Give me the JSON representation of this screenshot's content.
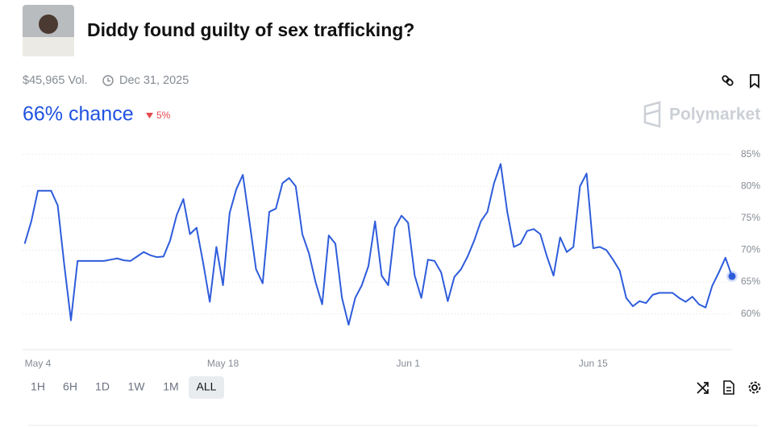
{
  "header": {
    "title": "Diddy found guilty of sex trafficking?",
    "volume": "$45,965 Vol.",
    "end_date": "Dec 31, 2025"
  },
  "odds": {
    "chance": "66% chance",
    "change": "5%"
  },
  "brand": "Polymarket",
  "time_ranges": [
    "1H",
    "6H",
    "1D",
    "1W",
    "1M",
    "ALL"
  ],
  "selected_range": "ALL",
  "chart_data": {
    "type": "line",
    "categories": [
      null,
      null,
      "May 4",
      null,
      null,
      null,
      null,
      null,
      null,
      null,
      null,
      null,
      null,
      null,
      null,
      null,
      null,
      null,
      null,
      null,
      null,
      null,
      null,
      null,
      null,
      null,
      null,
      null,
      null,
      null,
      "May 18",
      null,
      null,
      null,
      null,
      null,
      null,
      null,
      null,
      null,
      null,
      null,
      null,
      null,
      null,
      null,
      null,
      null,
      null,
      null,
      null,
      null,
      null,
      null,
      null,
      null,
      null,
      null,
      "Jun 1",
      null,
      null,
      null,
      null,
      null,
      null,
      null,
      null,
      null,
      null,
      null,
      null,
      null,
      null,
      null,
      null,
      null,
      null,
      null,
      null,
      null,
      null,
      null,
      null,
      null,
      null,
      null,
      "Jun 15",
      null,
      null,
      null,
      null,
      null,
      null,
      null,
      null,
      null,
      null,
      null,
      null,
      null,
      null,
      null,
      null,
      null,
      null,
      null,
      null,
      null
    ],
    "values": [
      71.0,
      74.5,
      79.3,
      79.3,
      79.3,
      77.0,
      67.6,
      59.0,
      68.3,
      68.3,
      68.3,
      68.3,
      68.3,
      68.5,
      68.7,
      68.4,
      68.3,
      69.0,
      69.7,
      69.2,
      68.9,
      69.0,
      71.5,
      75.5,
      78.0,
      72.5,
      73.5,
      68.0,
      61.9,
      70.5,
      64.5,
      75.8,
      79.5,
      81.8,
      74.5,
      67.0,
      64.8,
      76.0,
      76.5,
      80.5,
      81.3,
      80.0,
      72.5,
      69.5,
      65.0,
      61.5,
      72.3,
      71.0,
      62.5,
      58.3,
      62.5,
      64.5,
      67.5,
      74.5,
      66.0,
      64.5,
      73.5,
      75.4,
      74.3,
      66.0,
      62.5,
      68.5,
      68.3,
      66.5,
      62.0,
      65.8,
      67.0,
      69.0,
      71.5,
      74.5,
      76.0,
      80.5,
      83.5,
      76.0,
      70.5,
      71.0,
      73.0,
      73.3,
      72.5,
      69.0,
      66.0,
      72.0,
      69.7,
      70.5,
      80.0,
      82.0,
      70.3,
      70.5,
      70.0,
      68.5,
      66.8,
      62.5,
      61.2,
      62.0,
      61.7,
      63.0,
      63.3,
      63.3,
      63.3,
      62.5,
      61.9,
      62.7,
      61.5,
      61.0,
      64.4,
      66.5,
      68.8,
      65.9
    ],
    "color": "#2e5cdb",
    "ylim": [
      54.4,
      87.1
    ],
    "yticks": [
      {
        "value": 60,
        "label": "60%"
      },
      {
        "value": 65,
        "label": "65%"
      },
      {
        "value": 70,
        "label": "70%"
      },
      {
        "value": 75,
        "label": "75%"
      },
      {
        "value": 80,
        "label": "80%"
      },
      {
        "value": 85,
        "label": "85%"
      }
    ],
    "grid": true
  }
}
